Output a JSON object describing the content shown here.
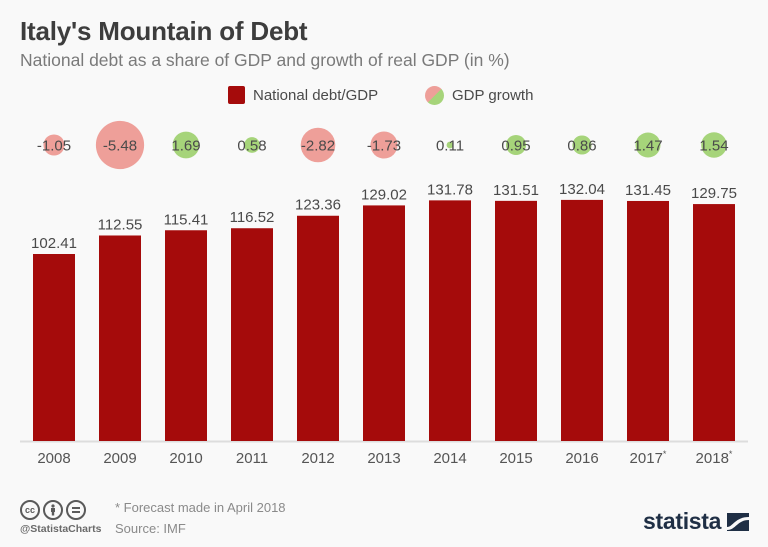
{
  "header": {
    "title": "Italy's Mountain of Debt",
    "subtitle": "National debt as a share of GDP and growth of real GDP (in %)"
  },
  "legend": {
    "debt_label": "National debt/GDP",
    "growth_label": "GDP growth"
  },
  "colors": {
    "debt_bar": "#a50b0b",
    "growth_negative": "#ee9f99",
    "growth_positive": "#a6d47a",
    "axis": "#dddddd",
    "label_text": "#4a4a4a"
  },
  "chart_data": {
    "type": "bar",
    "title": "Italy's Mountain of Debt",
    "subtitle": "National debt as a share of GDP and growth of real GDP (in %)",
    "xlabel": "",
    "ylabel": "",
    "categories": [
      "2008",
      "2009",
      "2010",
      "2011",
      "2012",
      "2013",
      "2014",
      "2015",
      "2016",
      "2017*",
      "2018*"
    ],
    "ylim": [
      0,
      140
    ],
    "grid": false,
    "legend_position": "top-center",
    "series": [
      {
        "name": "National debt/GDP",
        "mark": "bar",
        "values": [
          102.41,
          112.55,
          115.41,
          116.52,
          123.36,
          129.02,
          131.78,
          131.51,
          132.04,
          131.45,
          129.75
        ],
        "labels": [
          "102.41",
          "112.55",
          "115.41",
          "116.52",
          "123.36",
          "129.02",
          "131.78",
          "131.51",
          "132.04",
          "131.45",
          "129.75"
        ]
      },
      {
        "name": "GDP growth",
        "mark": "bubble",
        "values": [
          -1.05,
          -5.48,
          1.69,
          0.58,
          -2.82,
          -1.73,
          0.11,
          0.95,
          0.86,
          1.47,
          1.54
        ],
        "labels": [
          "-1.05",
          "-5.48",
          "1.69",
          "0.58",
          "-2.82",
          "-1.73",
          "0.11",
          "0.95",
          "0.86",
          "1.47",
          "1.54"
        ]
      }
    ],
    "annotations": [
      "* Forecast made in April 2018"
    ]
  },
  "footer": {
    "license_icons": [
      "cc-icon",
      "by-person-icon",
      "nd-equals-icon"
    ],
    "handle": "@StatistaCharts",
    "note": "* Forecast made in April 2018",
    "source": "Source: IMF",
    "logo_text": "statista"
  }
}
